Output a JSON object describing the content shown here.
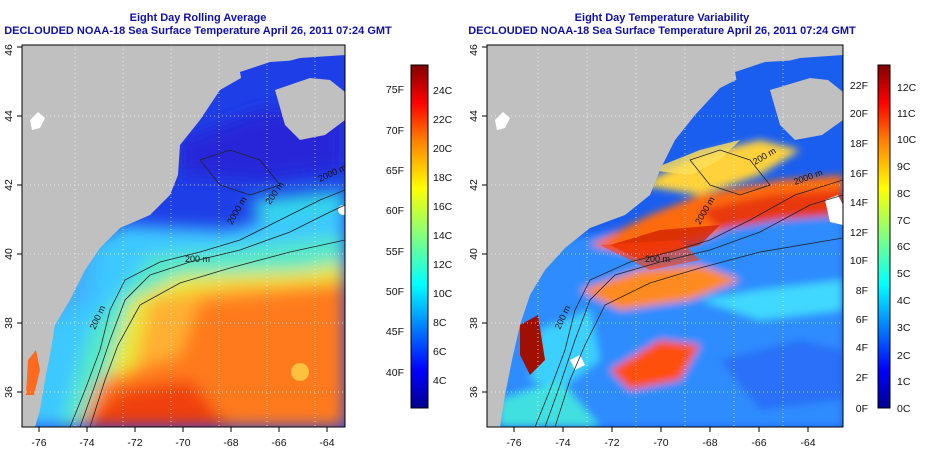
{
  "panels": [
    {
      "id": "avg",
      "title_line1": "Eight Day Rolling Average",
      "title_line2": "DECLOUDED NOAA-18 Sea Surface Temperature April 26, 2011 07:24 GMT",
      "x_ticks": [
        "-76",
        "-74",
        "-72",
        "-70",
        "-68",
        "-66",
        "-64"
      ],
      "y_ticks": [
        "36",
        "38",
        "40",
        "42",
        "44",
        "46"
      ],
      "contour_labels": [
        "2000 m",
        "200 m",
        "200 m",
        "2000 m",
        "200 m"
      ],
      "colorbar_left_labels": [
        "40F",
        "45F",
        "50F",
        "55F",
        "60F",
        "65F",
        "70F",
        "75F"
      ],
      "colorbar_right_labels": [
        "4C",
        "6C",
        "8C",
        "10C",
        "12C",
        "14C",
        "16C",
        "18C",
        "20C",
        "22C",
        "24C"
      ]
    },
    {
      "id": "var",
      "title_line1": "Eight Day Temperature Variability",
      "title_line2": "DECLOUDED NOAA-18 Sea Surface Temperature April 26, 2011 07:24 GMT",
      "x_ticks": [
        "-76",
        "-74",
        "-72",
        "-70",
        "-68",
        "-66",
        "-64"
      ],
      "y_ticks": [
        "36",
        "38",
        "40",
        "42",
        "44",
        "46"
      ],
      "contour_labels": [
        "2000 m",
        "200 m",
        "200 m",
        "2000 m",
        "200 m"
      ],
      "colorbar_left_labels": [
        "0F",
        "2F",
        "4F",
        "6F",
        "8F",
        "10F",
        "12F",
        "14F",
        "16F",
        "18F",
        "20F",
        "22F"
      ],
      "colorbar_right_labels": [
        "0C",
        "1C",
        "2C",
        "3C",
        "4C",
        "5C",
        "6C",
        "7C",
        "8C",
        "9C",
        "10C",
        "11C",
        "12C"
      ]
    }
  ],
  "map": {
    "lon_range": [
      -77,
      -63
    ],
    "lat_range": [
      35,
      46
    ],
    "land_color": "#c0c0c0",
    "grid": "dotted white"
  },
  "colors": {
    "title": "#1010a8",
    "jet": [
      "#00008f",
      "#0000ff",
      "#0080ff",
      "#00ffff",
      "#80ff80",
      "#ffff00",
      "#ff8000",
      "#ff0000",
      "#800000"
    ]
  }
}
